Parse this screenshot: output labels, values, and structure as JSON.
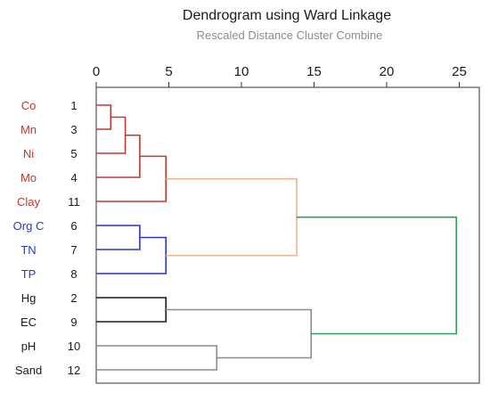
{
  "chart_data": {
    "type": "dendrogram",
    "title": "Dendrogram using Ward Linkage",
    "subtitle": "Rescaled Distance Cluster Combine",
    "xlim": [
      0,
      25
    ],
    "x_ticks": [
      "0",
      "5",
      "10",
      "15",
      "20",
      "25"
    ],
    "leaves": [
      {
        "label": "Co",
        "case": "1",
        "color": "#c0392b"
      },
      {
        "label": "Mn",
        "case": "3",
        "color": "#c0392b"
      },
      {
        "label": "Ni",
        "case": "5",
        "color": "#c0392b"
      },
      {
        "label": "Mo",
        "case": "4",
        "color": "#c0392b"
      },
      {
        "label": "Clay",
        "case": "11",
        "color": "#c0392b"
      },
      {
        "label": "Org C",
        "case": "6",
        "color": "#2a36c4"
      },
      {
        "label": "TN",
        "case": "7",
        "color": "#2a36c4"
      },
      {
        "label": "TP",
        "case": "8",
        "color": "#2a36c4"
      },
      {
        "label": "Hg",
        "case": "2",
        "color": "#1a1a1a"
      },
      {
        "label": "EC",
        "case": "9",
        "color": "#1a1a1a"
      },
      {
        "label": "pH",
        "case": "10",
        "color": "#1a1a1a"
      },
      {
        "label": "Sand",
        "case": "12",
        "color": "#1a1a1a"
      }
    ],
    "merges": [
      {
        "a": 0,
        "b": 1,
        "height": 1.0,
        "color": "#c0392b"
      },
      {
        "a": 12,
        "b": 2,
        "height": 2.0,
        "color": "#c0392b"
      },
      {
        "a": 13,
        "b": 3,
        "height": 3.0,
        "color": "#c0392b"
      },
      {
        "a": 14,
        "b": 4,
        "height": 4.8,
        "color": "#c0392b"
      },
      {
        "a": 5,
        "b": 6,
        "height": 3.0,
        "color": "#2a36c4"
      },
      {
        "a": 16,
        "b": 7,
        "height": 4.8,
        "color": "#2a36c4"
      },
      {
        "a": 15,
        "b": 17,
        "height": 13.8,
        "color": "#f0b48a"
      },
      {
        "a": 8,
        "b": 9,
        "height": 4.8,
        "color": "#1a1a1a"
      },
      {
        "a": 10,
        "b": 11,
        "height": 8.3,
        "color": "#8c8c8c"
      },
      {
        "a": 19,
        "b": 20,
        "height": 14.8,
        "color": "#8c8c8c"
      },
      {
        "a": 18,
        "b": 21,
        "height": 24.8,
        "color": "#2e9e5b"
      }
    ]
  }
}
